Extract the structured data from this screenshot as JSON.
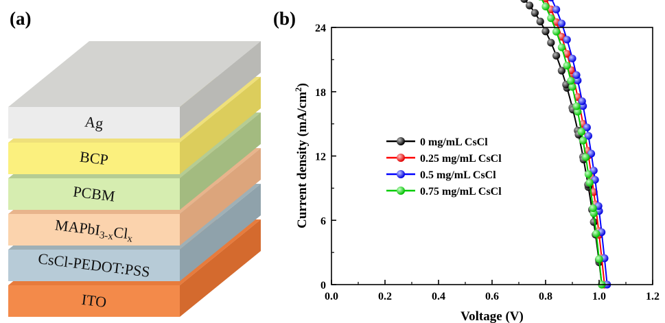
{
  "panel_a": {
    "label": "(a)",
    "layers": [
      {
        "name": "Ag",
        "top": "#d3d3d0",
        "front": "#ececec",
        "side": "#b9b9b5"
      },
      {
        "name": "BCP",
        "top": "#efe07a",
        "front": "#fbf07e",
        "side": "#dccd5c"
      },
      {
        "name": "PCBM",
        "top": "#b5cc93",
        "front": "#d6edb0",
        "side": "#a3bb80"
      },
      {
        "name_main": "MAPbI",
        "name_sub1": "3-x",
        "name_mid": "Cl",
        "name_sub2": "x",
        "top": "#e8b48c",
        "front": "#fbd3ad",
        "side": "#dca57c"
      },
      {
        "name": "CsCl-PEDOT:PSS",
        "top": "#9fb0b6",
        "front": "#b7cbd7",
        "side": "#8fa2ab"
      },
      {
        "name": "ITO",
        "top": "#e77b3c",
        "front": "#f38a4a",
        "side": "#d46a2e"
      }
    ]
  },
  "chart_data": {
    "type": "line",
    "panel_label": "(b)",
    "xlabel": "Voltage (V)",
    "ylabel_main": "Current density (mA/cm",
    "ylabel_sup": "2",
    "ylabel_end": ")",
    "xlim": [
      0.0,
      1.2
    ],
    "ylim": [
      0,
      24
    ],
    "xticks": [
      "0.0",
      "0.2",
      "0.4",
      "0.6",
      "0.8",
      "1.0",
      "1.2"
    ],
    "yticks": [
      "0",
      "6",
      "12",
      "18",
      "24"
    ],
    "legend_position": "center-left",
    "series": [
      {
        "name": "0 mg/mL CsCl",
        "color": "#000000",
        "jsc": 21.0,
        "voc": 1.01,
        "knee": 0.86,
        "w": 0.14,
        "slope": 1.2
      },
      {
        "name": "0.25 mg/mL CsCl",
        "color": "#ff0000",
        "jsc": 22.5,
        "voc": 1.02,
        "knee": 0.88,
        "w": 0.13,
        "slope": 1.1
      },
      {
        "name": "0.5 mg/mL CsCl",
        "color": "#0000ff",
        "jsc": 22.0,
        "voc": 1.03,
        "knee": 0.9,
        "w": 0.13,
        "slope": 1.0
      },
      {
        "name": "0.75 mg/mL CsCl",
        "color": "#00cc00",
        "jsc": 21.4,
        "voc": 1.01,
        "knee": 0.88,
        "w": 0.13,
        "slope": 1.1
      }
    ]
  }
}
